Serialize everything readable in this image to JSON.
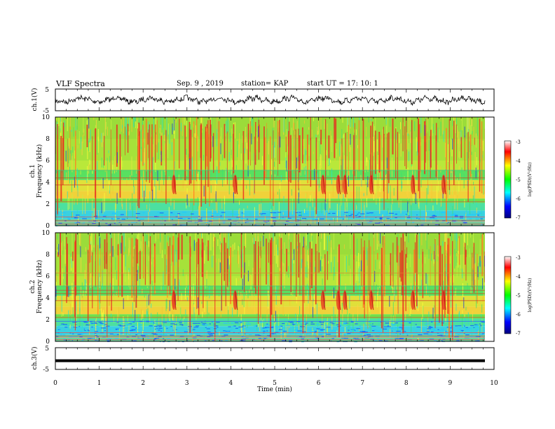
{
  "header": {
    "title": "VLF Spectra",
    "date": "Sep. 9 , 2019",
    "station": "station= KAP",
    "start": "start UT = 17: 10: 1"
  },
  "chart_data": {
    "type": "heatmap",
    "xlabel": "Time (min)",
    "xlim": [
      0,
      10
    ],
    "x_ticks": [
      "0",
      "1",
      "2",
      "3",
      "4",
      "5",
      "6",
      "7",
      "8",
      "9",
      "10"
    ],
    "panels": [
      {
        "id": "ch1-waveform",
        "type": "line",
        "ylabel": "ch.1(V)",
        "ylim": [
          -5,
          5
        ],
        "y_ticks": [
          "5",
          "-5"
        ]
      },
      {
        "id": "ch1-spectrogram",
        "type": "heatmap",
        "ylabel_line1": "ch.1",
        "ylabel_line2": "Frequency (kHz)",
        "ylim": [
          0,
          10
        ],
        "y_ticks": [
          "0",
          "2",
          "4",
          "6",
          "8",
          "10"
        ],
        "colorbar": {
          "label": "log(PSD)(V²/Hz)",
          "range": [
            -7,
            -3
          ],
          "ticks": [
            "-3",
            "-4",
            "-5",
            "-6",
            "-7"
          ]
        },
        "emission_bursts_min": [
          2.7,
          4.1,
          6.1,
          6.45,
          6.6,
          7.2,
          8.15,
          8.85
        ]
      },
      {
        "id": "ch2-spectrogram",
        "type": "heatmap",
        "ylabel_line1": "ch.2",
        "ylabel_line2": "Frequency (kHz)",
        "ylim": [
          0,
          10
        ],
        "y_ticks": [
          "0",
          "2",
          "4",
          "6",
          "8",
          "10"
        ],
        "colorbar": {
          "label": "log(PSD)(V²/Hz)",
          "range": [
            -7,
            -3
          ],
          "ticks": [
            "-3",
            "-4",
            "-5",
            "-6",
            "-7"
          ]
        },
        "emission_bursts_min": [
          2.7,
          4.1,
          6.1,
          6.45,
          6.6,
          7.2,
          8.15,
          8.85
        ]
      },
      {
        "id": "ch3-waveform",
        "type": "line",
        "ylabel": "ch.3(V)",
        "ylim": [
          -5,
          5
        ],
        "y_ticks": [
          "5",
          "-5"
        ],
        "constant_value": -1
      }
    ],
    "colors": {
      "background": "#ffffff",
      "trace": "#000000",
      "colormap": [
        "#00007f",
        "#0000ff",
        "#00ffff",
        "#00ff00",
        "#ffff00",
        "#ff0000",
        "#ffffff"
      ]
    }
  }
}
